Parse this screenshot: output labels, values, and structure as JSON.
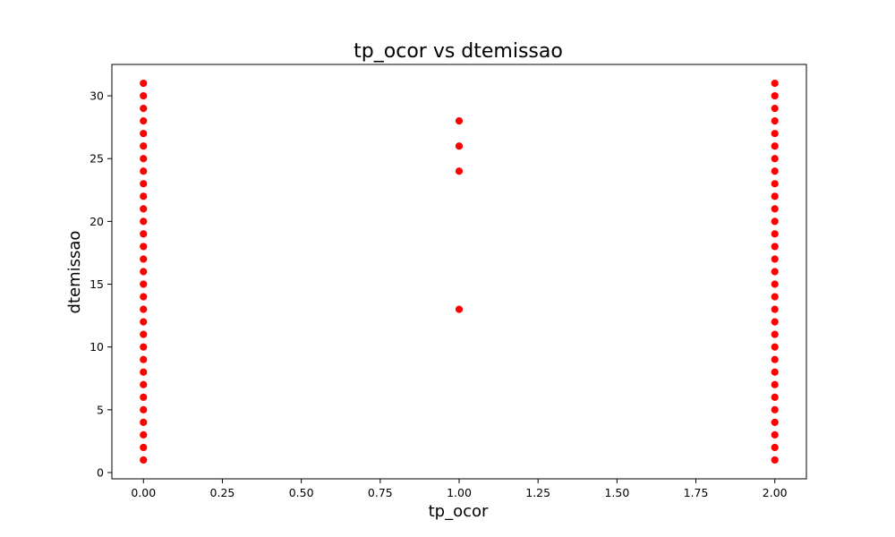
{
  "chart_data": {
    "type": "scatter",
    "title": "tp_ocor vs dtemissao",
    "xlabel": "tp_ocor",
    "ylabel": "dtemissao",
    "xlim": [
      -0.1,
      2.1
    ],
    "ylim": [
      -0.5,
      32.5
    ],
    "xticks": [
      0.0,
      0.25,
      0.5,
      0.75,
      1.0,
      1.25,
      1.5,
      1.75,
      2.0
    ],
    "xtick_labels": [
      "0.00",
      "0.25",
      "0.50",
      "0.75",
      "1.00",
      "1.25",
      "1.50",
      "1.75",
      "2.00"
    ],
    "yticks": [
      0,
      5,
      10,
      15,
      20,
      25,
      30
    ],
    "ytick_labels": [
      "0",
      "5",
      "10",
      "15",
      "20",
      "25",
      "30"
    ],
    "grid": false,
    "point_color": "#ff0000",
    "series": [
      {
        "x": [
          0,
          0,
          0,
          0,
          0,
          0,
          0,
          0,
          0,
          0,
          0,
          0,
          0,
          0,
          0,
          0,
          0,
          0,
          0,
          0,
          0,
          0,
          0,
          0,
          0,
          0,
          0,
          0,
          0,
          0,
          0,
          1,
          1,
          1,
          1,
          2,
          2,
          2,
          2,
          2,
          2,
          2,
          2,
          2,
          2,
          2,
          2,
          2,
          2,
          2,
          2,
          2,
          2,
          2,
          2,
          2,
          2,
          2,
          2,
          2,
          2,
          2,
          2,
          2,
          2,
          2
        ],
        "y": [
          1,
          2,
          3,
          4,
          5,
          6,
          7,
          8,
          9,
          10,
          11,
          12,
          13,
          14,
          15,
          16,
          17,
          18,
          19,
          20,
          21,
          22,
          23,
          24,
          25,
          26,
          27,
          28,
          29,
          30,
          31,
          13,
          24,
          26,
          28,
          1,
          2,
          3,
          4,
          5,
          6,
          7,
          8,
          9,
          10,
          11,
          12,
          13,
          14,
          15,
          16,
          17,
          18,
          19,
          20,
          21,
          22,
          23,
          24,
          25,
          26,
          27,
          28,
          29,
          30,
          31
        ]
      }
    ]
  }
}
